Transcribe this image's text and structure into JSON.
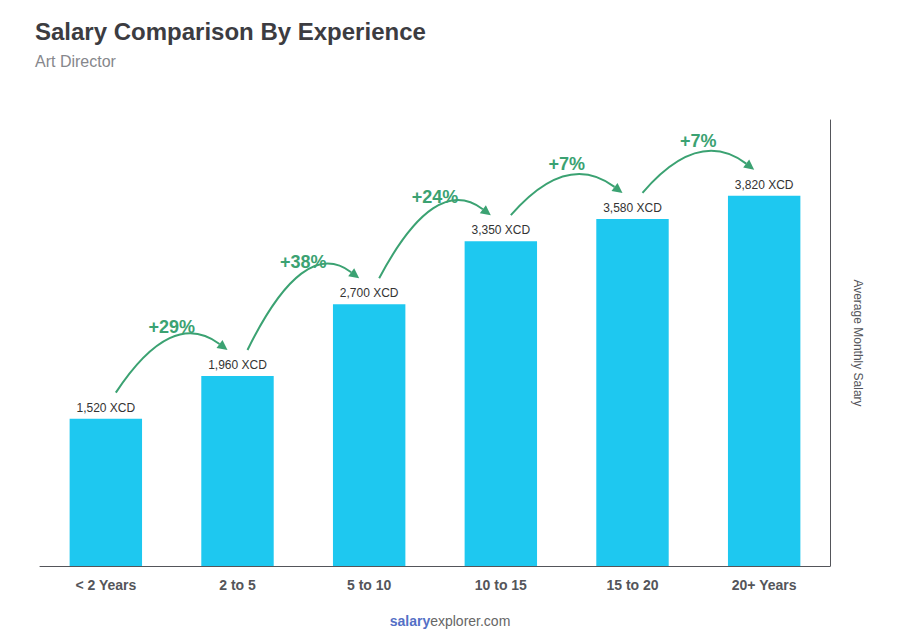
{
  "chart_data": {
    "type": "bar",
    "title": "Salary Comparison By Experience",
    "subtitle": "Art Director",
    "ylabel": "Average Monthly Salary",
    "categories": [
      "< 2 Years",
      "2 to 5",
      "5 to 10",
      "10 to 15",
      "15 to 20",
      "20+ Years"
    ],
    "values": [
      1520,
      1960,
      2700,
      3350,
      3580,
      3820
    ],
    "value_labels": [
      "1,520 XCD",
      "1,960 XCD",
      "2,700 XCD",
      "3,350 XCD",
      "3,580 XCD",
      "3,820 XCD"
    ],
    "data_labels": true,
    "annotations": [
      "+29%",
      "+38%",
      "+24%",
      "+7%",
      "+7%"
    ],
    "watermark": [
      "salary",
      "explorer.com"
    ],
    "color": "#1ec8f0",
    "ylim": [
      0,
      4600
    ],
    "tick_labels": "x",
    "grid": false
  }
}
